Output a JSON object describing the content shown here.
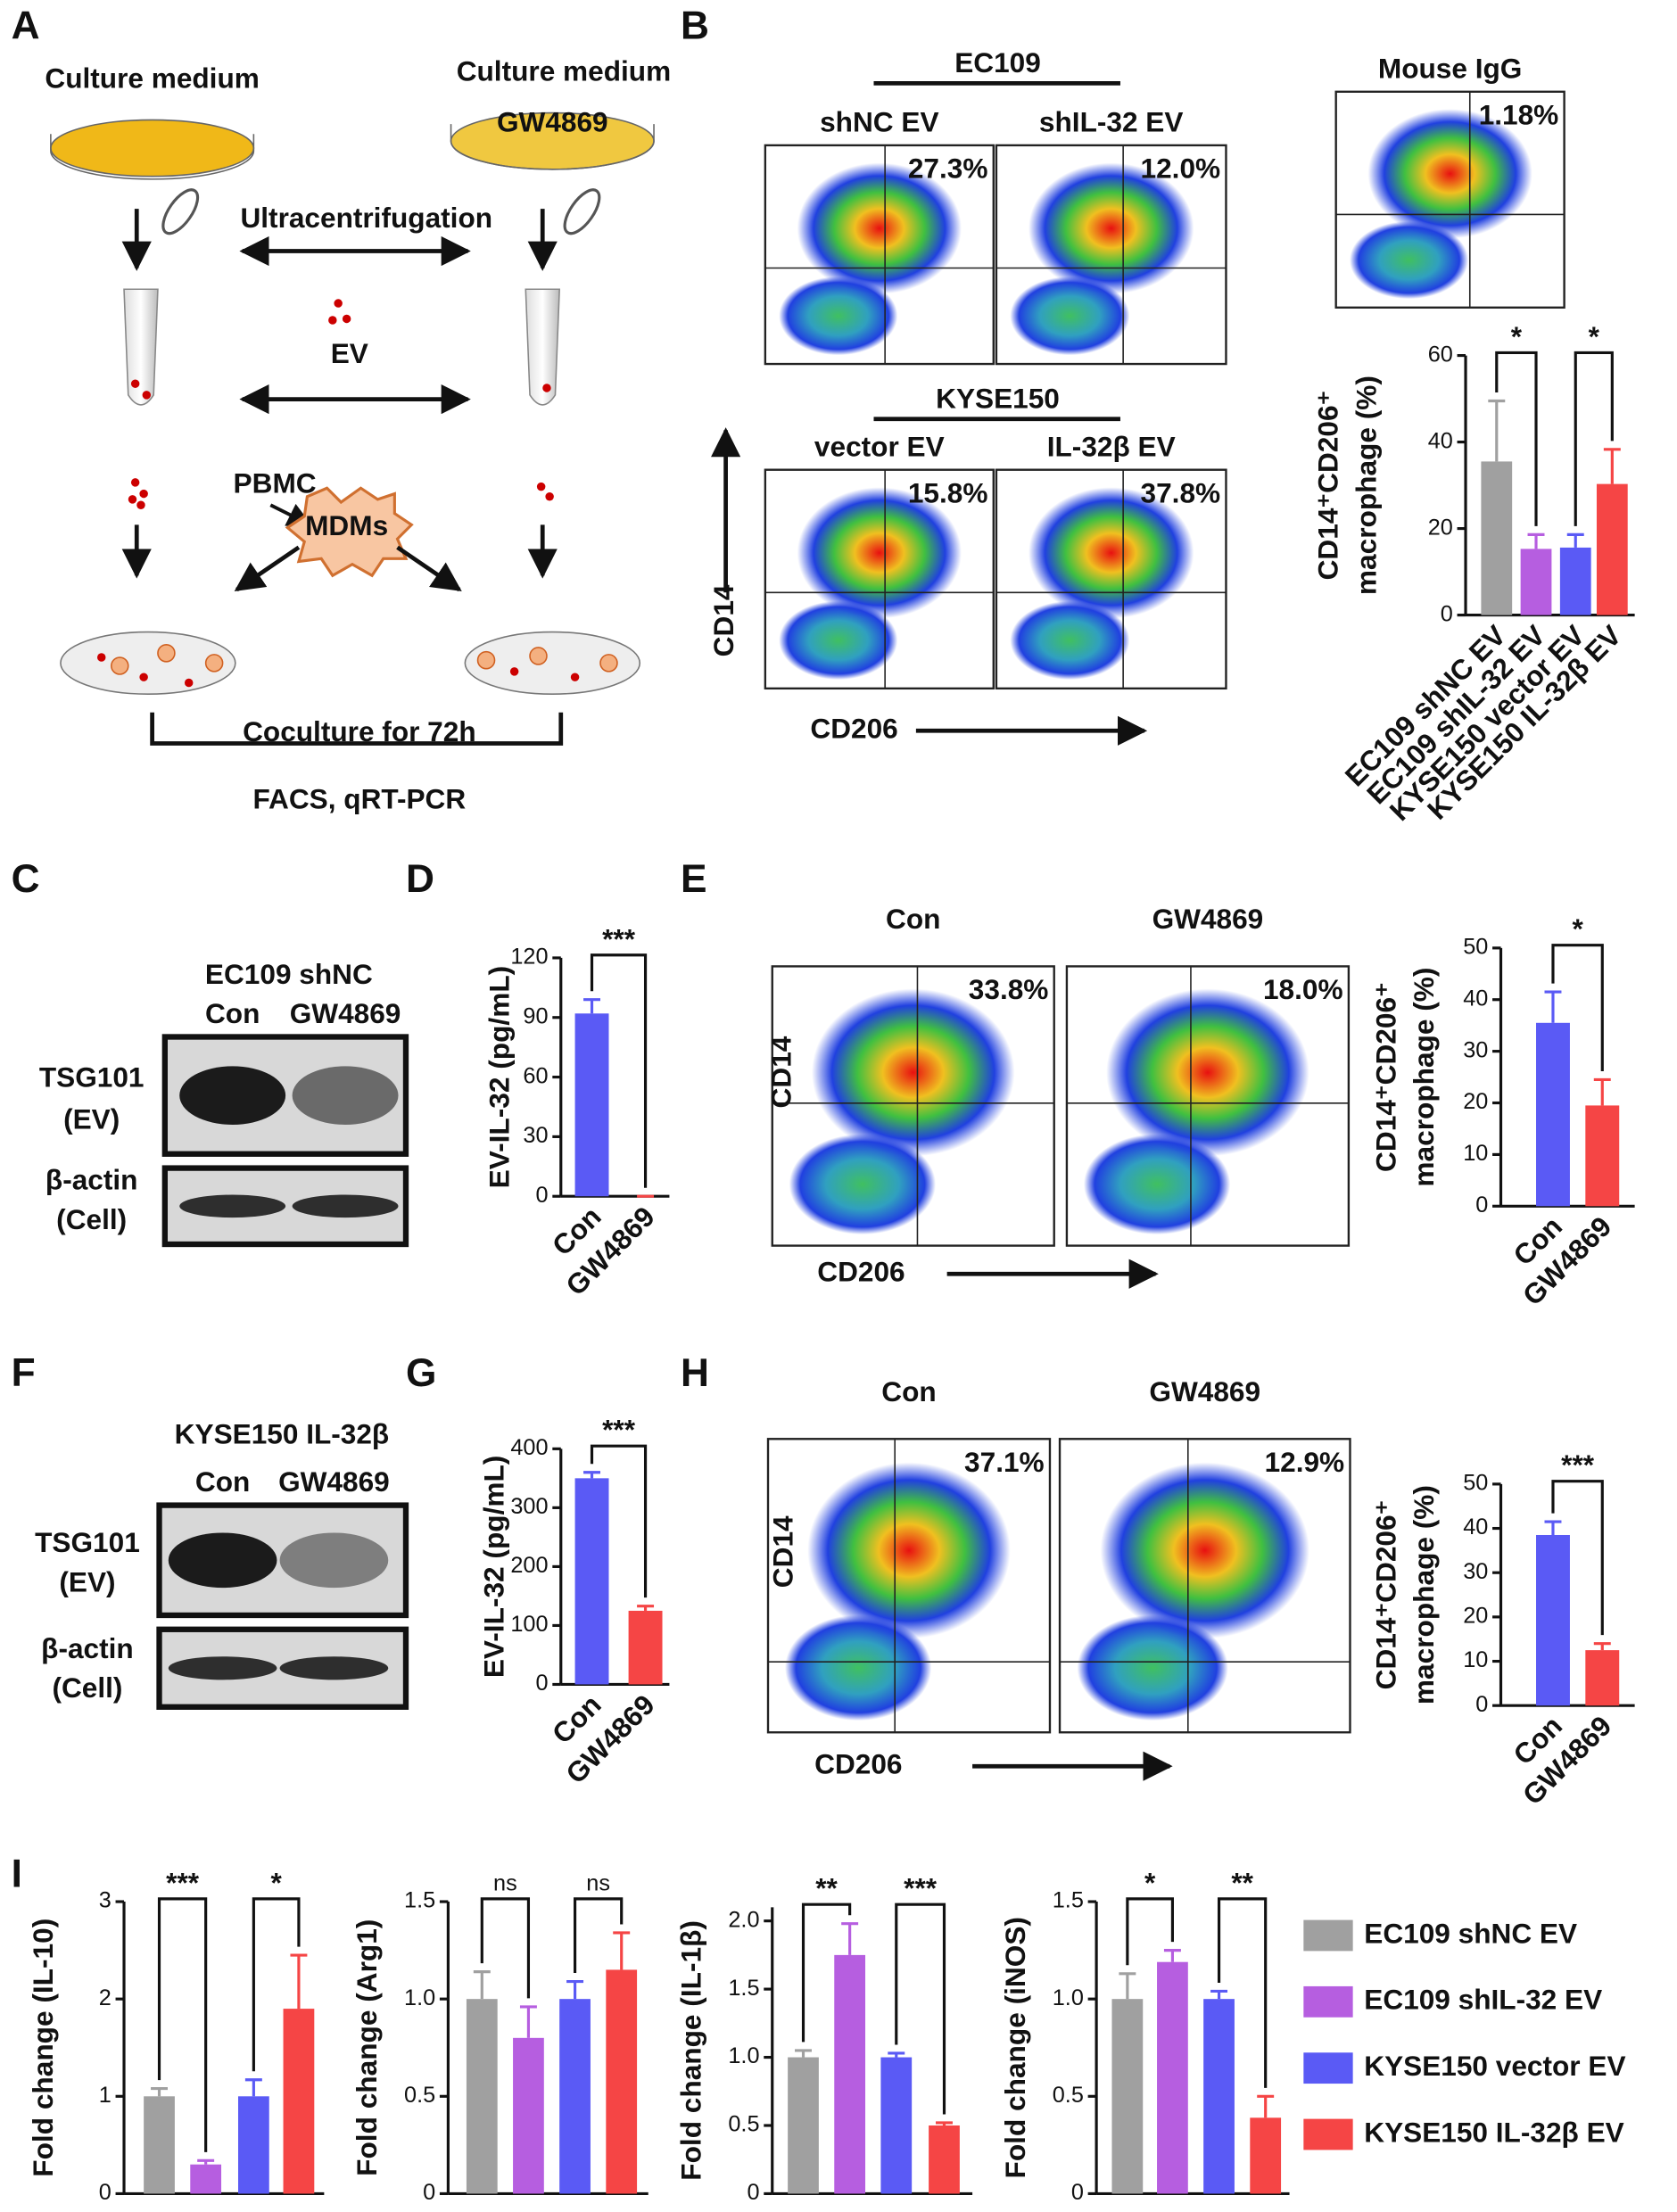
{
  "panel_labels": [
    "A",
    "B",
    "C",
    "D",
    "E",
    "F",
    "G",
    "H",
    "I"
  ],
  "diagram": {
    "medium_left": "Culture medium",
    "medium_right": "Culture medium",
    "drug": "GW4869",
    "step": "Ultracentrifugation",
    "ev": "EV",
    "pbmc": "PBMC",
    "mdms": "MDMs",
    "coculture": "Coculture for 72h",
    "readout": "FACS, qRT-PCR"
  },
  "flow_groups": [
    {
      "group": "EC109",
      "plots": [
        {
          "label": "shNC EV",
          "percent": "27.3%"
        },
        {
          "label": "shIL-32 EV",
          "percent": "12.0%"
        }
      ]
    },
    {
      "group": "KYSE150",
      "plots": [
        {
          "label": "vector EV",
          "percent": "15.8%"
        },
        {
          "label": "IL-32β EV",
          "percent": "37.8%"
        }
      ]
    },
    {
      "plots": [
        {
          "label": "Mouse IgG",
          "percent": "1.18%"
        }
      ]
    },
    {
      "plots": [
        {
          "label": "Con",
          "percent": "33.8%"
        },
        {
          "label": "GW4869",
          "percent": "18.0%"
        }
      ]
    },
    {
      "plots": [
        {
          "label": "Con",
          "percent": "37.1%"
        },
        {
          "label": "GW4869",
          "percent": "12.9%"
        }
      ]
    }
  ],
  "flow_axes": [
    {
      "x": "CD206",
      "y": "CD14"
    },
    {
      "x": "CD206",
      "y": "CD14"
    },
    {
      "x": "CD206",
      "y": "CD14"
    }
  ],
  "blots": [
    {
      "title": "EC109 shNC",
      "lanes": [
        "Con",
        "GW4869"
      ],
      "rows": [
        [
          "TSG101",
          "(EV)"
        ],
        [
          "β-actin",
          "(Cell)"
        ]
      ]
    },
    {
      "title": "KYSE150 IL-32β",
      "lanes": [
        "Con",
        "GW4869"
      ],
      "rows": [
        [
          "TSG101",
          "(EV)"
        ],
        [
          "β-actin",
          "(Cell)"
        ]
      ]
    }
  ],
  "legend": {
    "labels": [
      "EC109 shNC EV",
      "EC109 shIL-32 EV",
      "KYSE150 vector EV",
      "KYSE150 IL-32β EV"
    ],
    "colors": [
      "#a0a0a0",
      "#b65ee0",
      "#5a5af5",
      "#f54545"
    ]
  },
  "chart_data": [
    {
      "type": "bar",
      "categories": [
        "EC109 shNC EV",
        "EC109 shIL-32 EV",
        "KYSE150 vector EV",
        "KYSE150 IL-32β EV"
      ],
      "values": [
        35.5,
        15.3,
        15.6,
        30.3
      ],
      "errors": [
        14,
        3.3,
        3,
        8
      ],
      "colors": [
        "#a0a0a0",
        "#b65ee0",
        "#5a5af5",
        "#f54545"
      ],
      "ylim": [
        0,
        60
      ],
      "yticks": [
        0,
        20,
        40,
        60
      ],
      "ylabel": [
        "CD14⁺CD206⁺",
        "macrophage (%)"
      ],
      "comparisons": [
        {
          "label": "*"
        },
        {
          "label": "*"
        }
      ]
    },
    {
      "type": "bar",
      "categories": [
        "Con",
        "GW4869"
      ],
      "values": [
        92,
        0
      ],
      "errors": [
        7,
        0
      ],
      "colors": [
        "#5a5af5",
        "#f54545"
      ],
      "ylim": [
        0,
        120
      ],
      "yticks": [
        0,
        30,
        60,
        90,
        120
      ],
      "ylabel": [
        "EV-IL-32 (pg/mL)"
      ],
      "comparisons": [
        {
          "label": "***"
        }
      ]
    },
    {
      "type": "bar",
      "categories": [
        "Con",
        "GW4869"
      ],
      "values": [
        35.5,
        19.5
      ],
      "errors": [
        6,
        5
      ],
      "colors": [
        "#5a5af5",
        "#f54545"
      ],
      "ylim": [
        0,
        50
      ],
      "yticks": [
        0,
        10,
        20,
        30,
        40,
        50
      ],
      "ylabel": [
        "CD14⁺CD206⁺",
        "macrophage (%)"
      ],
      "comparisons": [
        {
          "label": "*"
        }
      ]
    },
    {
      "type": "bar",
      "categories": [
        "Con",
        "GW4869"
      ],
      "values": [
        350,
        125
      ],
      "errors": [
        10,
        8
      ],
      "colors": [
        "#5a5af5",
        "#f54545"
      ],
      "ylim": [
        0,
        400
      ],
      "yticks": [
        0,
        100,
        200,
        300,
        400
      ],
      "ylabel": [
        "EV-IL-32 (pg/mL)"
      ],
      "comparisons": [
        {
          "label": "***"
        }
      ]
    },
    {
      "type": "bar",
      "categories": [
        "Con",
        "GW4869"
      ],
      "values": [
        38.5,
        12.5
      ],
      "errors": [
        3,
        1.5
      ],
      "colors": [
        "#5a5af5",
        "#f54545"
      ],
      "ylim": [
        0,
        50
      ],
      "yticks": [
        0,
        10,
        20,
        30,
        40,
        50
      ],
      "ylabel": [
        "CD14⁺CD206⁺",
        "macrophage (%)"
      ],
      "comparisons": [
        {
          "label": "***"
        }
      ]
    },
    {
      "type": "bar",
      "values": [
        1,
        0.3,
        1,
        1.9
      ],
      "errors": [
        0.08,
        0.04,
        0.17,
        0.55
      ],
      "colors": [
        "#a0a0a0",
        "#b65ee0",
        "#5a5af5",
        "#f54545"
      ],
      "ylim": [
        0,
        3
      ],
      "yticks": [
        0,
        1,
        2,
        3
      ],
      "ylabel": [
        "Fold change (IL-10)"
      ],
      "comparisons": [
        {
          "label": "***"
        },
        {
          "label": "*"
        }
      ]
    },
    {
      "type": "bar",
      "values": [
        1,
        0.8,
        1,
        1.15
      ],
      "errors": [
        0.14,
        0.16,
        0.09,
        0.19
      ],
      "colors": [
        "#a0a0a0",
        "#b65ee0",
        "#5a5af5",
        "#f54545"
      ],
      "ylim": [
        0,
        1.5
      ],
      "yticks": [
        0,
        0.5,
        {
          "value": 1,
          "label": "1.0"
        },
        1.5
      ],
      "ylabel": [
        "Fold change (Arg1)"
      ],
      "comparisons": [
        {
          "label": "ns"
        },
        {
          "label": "ns"
        }
      ]
    },
    {
      "type": "bar",
      "values": [
        1,
        1.75,
        1,
        0.5
      ],
      "errors": [
        0.05,
        0.23,
        0.03,
        0.02
      ],
      "colors": [
        "#a0a0a0",
        "#b65ee0",
        "#5a5af5",
        "#f54545"
      ],
      "ylim": [
        0,
        2.1
      ],
      "yticks": [
        0,
        0.5,
        {
          "value": 1,
          "label": "1.0"
        },
        1.5,
        {
          "value": 2,
          "label": "2.0"
        }
      ],
      "ylabel": [
        "Fold change (IL-1β)"
      ],
      "comparisons": [
        {
          "label": "**"
        },
        {
          "label": "***"
        }
      ]
    },
    {
      "type": "bar",
      "values": [
        1,
        1.19,
        1,
        0.39
      ],
      "errors": [
        0.13,
        0.06,
        0.04,
        0.11
      ],
      "colors": [
        "#a0a0a0",
        "#b65ee0",
        "#5a5af5",
        "#f54545"
      ],
      "ylim": [
        0,
        1.5
      ],
      "yticks": [
        0,
        0.5,
        {
          "value": 1,
          "label": "1.0"
        },
        1.5
      ],
      "ylabel": [
        "Fold change (iNOS)"
      ],
      "comparisons": [
        {
          "label": "*"
        },
        {
          "label": "**"
        }
      ]
    }
  ]
}
